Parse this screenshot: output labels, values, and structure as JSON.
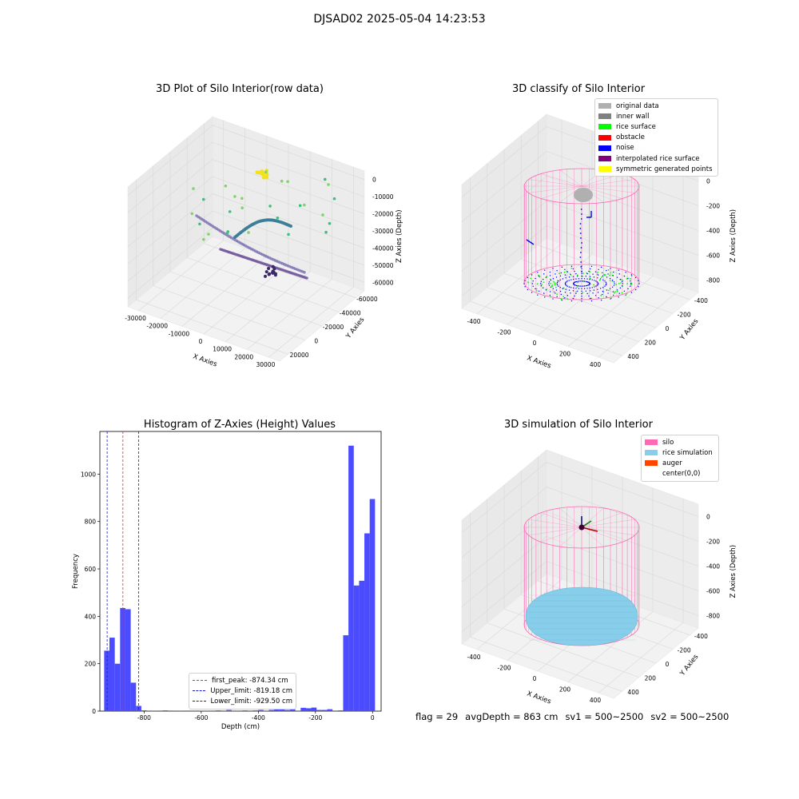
{
  "figure": {
    "suptitle": "DJSAD02 2025-05-04 14:23:53",
    "footer": {
      "flag": "flag = 29",
      "avg_depth": "avgDepth = 863 cm",
      "sv1": "sv1 = 500~2500",
      "sv2": "sv2 = 500~2500"
    }
  },
  "colors": {
    "histogram_bar": "#4b4bff",
    "first_peak_line": "#e03030",
    "limit_lines": "#1a1ad0",
    "silo": "#ff69b4",
    "rice_simulation": "#87ceeb",
    "auger": "#ff4500",
    "noise": "#0000ff",
    "rice_surface": "#00ff00",
    "original_data": "#b0b0b0",
    "inner_wall": "#808080",
    "obstacle": "#ff0000",
    "interpolated_rice_surface": "#800080",
    "symmetric_generated_points": "#ffff00"
  },
  "chart_data": [
    {
      "type": "scatter",
      "title": "3D Plot of Silo Interior(row data)",
      "xlabel": "X Axies",
      "ylabel": "Y Axies",
      "zlabel": "Z Axies (Depth)",
      "x_ticks": [
        "-30000",
        "-20000",
        "-10000",
        "0",
        "10000",
        "20000",
        "30000"
      ],
      "y_ticks": [
        "-60000",
        "-40000",
        "-20000",
        "0",
        "20000"
      ],
      "z_ticks": [
        "0",
        "-10000",
        "-20000",
        "-30000",
        "-40000",
        "-50000",
        "-60000"
      ]
    },
    {
      "type": "scatter",
      "title": "3D classify of Silo Interior",
      "xlabel": "X Axies",
      "ylabel": "Y Axies",
      "zlabel": "Z Axies (Depth)",
      "x_ticks": [
        "-400",
        "-200",
        "0",
        "200",
        "400"
      ],
      "y_ticks": [
        "-400",
        "-200",
        "0",
        "200",
        "400"
      ],
      "z_ticks": [
        "0",
        "-200",
        "-400",
        "-600",
        "-800"
      ],
      "legend": [
        {
          "label": "original data",
          "color": "#b0b0b0"
        },
        {
          "label": "inner wall",
          "color": "#808080"
        },
        {
          "label": "rice surface",
          "color": "#00ff00"
        },
        {
          "label": "obstacle",
          "color": "#ff0000"
        },
        {
          "label": "noise",
          "color": "#0000ff"
        },
        {
          "label": "interpolated rice surface",
          "color": "#800080"
        },
        {
          "label": "symmetric generated points",
          "color": "#ffff00"
        }
      ]
    },
    {
      "type": "bar",
      "title": "Histogram of Z-Axies (Height) Values",
      "xlabel": "Depth (cm)",
      "ylabel": "Frequency",
      "xlim": [
        -955,
        30
      ],
      "ylim": [
        0,
        1180
      ],
      "x_ticks": [
        -800,
        -600,
        -400,
        -200,
        0
      ],
      "y_ticks": [
        0,
        200,
        400,
        600,
        800,
        1000
      ],
      "bin_width": 18.6,
      "bins": [
        {
          "x0": -940,
          "count": 255
        },
        {
          "x0": -921.4,
          "count": 310
        },
        {
          "x0": -902.8,
          "count": 200
        },
        {
          "x0": -884.2,
          "count": 435
        },
        {
          "x0": -865.6,
          "count": 430
        },
        {
          "x0": -847,
          "count": 120
        },
        {
          "x0": -828.4,
          "count": 22
        },
        {
          "x0": -809.8,
          "count": 3
        },
        {
          "x0": -772.6,
          "count": 2
        },
        {
          "x0": -735.4,
          "count": 3
        },
        {
          "x0": -698.2,
          "count": 2
        },
        {
          "x0": -679.6,
          "count": 2
        },
        {
          "x0": -605.2,
          "count": 2
        },
        {
          "x0": -586.6,
          "count": 2
        },
        {
          "x0": -549.4,
          "count": 3
        },
        {
          "x0": -512.2,
          "count": 5
        },
        {
          "x0": -456.4,
          "count": 3
        },
        {
          "x0": -419.2,
          "count": 3
        },
        {
          "x0": -400.6,
          "count": 5
        },
        {
          "x0": -363.4,
          "count": 5
        },
        {
          "x0": -344.8,
          "count": 10
        },
        {
          "x0": -326.2,
          "count": 8
        },
        {
          "x0": -307.6,
          "count": 5
        },
        {
          "x0": -289,
          "count": 8
        },
        {
          "x0": -251.8,
          "count": 14
        },
        {
          "x0": -233.2,
          "count": 12
        },
        {
          "x0": -214.6,
          "count": 15
        },
        {
          "x0": -196,
          "count": 5
        },
        {
          "x0": -177.4,
          "count": 5
        },
        {
          "x0": -158.8,
          "count": 8
        },
        {
          "x0": -121.6,
          "count": 3
        },
        {
          "x0": -103,
          "count": 320
        },
        {
          "x0": -84.4,
          "count": 1120
        },
        {
          "x0": -65.8,
          "count": 530
        },
        {
          "x0": -47.2,
          "count": 550
        },
        {
          "x0": -28.6,
          "count": 750
        },
        {
          "x0": -10,
          "count": 895
        }
      ],
      "lines": [
        {
          "label": "first_peak: -874.34 cm",
          "x": -874.34,
          "color": "#e03030"
        },
        {
          "label": "Upper_limit: -819.18 cm",
          "x": -819.18,
          "color": "#1a1ad0"
        },
        {
          "label": "Lower_limit: -929.50 cm",
          "x": -929.5,
          "color": "#1a1ad0"
        }
      ]
    },
    {
      "type": "scatter",
      "title": "3D simulation of Silo Interior",
      "xlabel": "X Axies",
      "ylabel": "Y Axies",
      "zlabel": "Z Axies (Depth)",
      "x_ticks": [
        "-400",
        "-200",
        "0",
        "200",
        "400"
      ],
      "y_ticks": [
        "-400",
        "-200",
        "0",
        "200",
        "400"
      ],
      "z_ticks": [
        "0",
        "-200",
        "-400",
        "-600",
        "-800"
      ],
      "legend": [
        {
          "label": "silo",
          "color": "#ff69b4"
        },
        {
          "label": "rice simulation",
          "color": "#87ceeb"
        },
        {
          "label": "auger",
          "color": "#ff4500"
        },
        {
          "label": "center(0,0)",
          "color": ""
        }
      ]
    }
  ]
}
